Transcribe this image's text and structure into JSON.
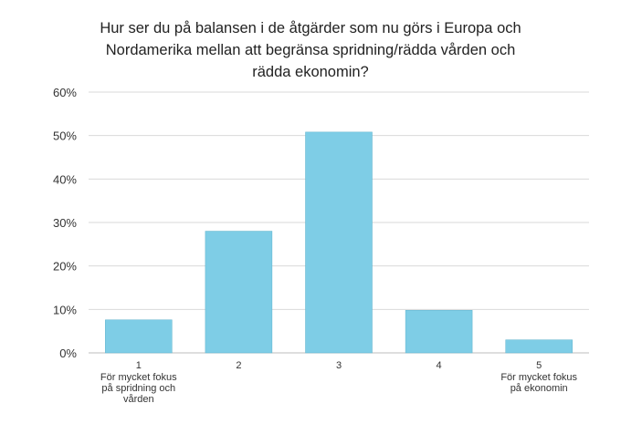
{
  "chart_data": {
    "type": "bar",
    "title_lines": [
      "Hur ser du på balansen i de åtgärder som nu görs i Europa och",
      "Nordamerika mellan att begränsa spridning/rädda vården och",
      "rädda ekonomin?"
    ],
    "categories": [
      "1",
      "2",
      "3",
      "4",
      "5"
    ],
    "category_sublabels": [
      [
        "För mycket fokus",
        "på spridning och",
        "vården"
      ],
      [],
      [],
      [],
      [
        "För mycket fokus",
        "på ekonomin"
      ]
    ],
    "values": [
      7.6,
      28.0,
      50.8,
      9.8,
      3.0
    ],
    "ylim": [
      0,
      60
    ],
    "yticks": [
      0,
      10,
      20,
      30,
      40,
      50,
      60
    ],
    "ytick_labels": [
      "0%",
      "10%",
      "20%",
      "30%",
      "40%",
      "50%",
      "60%"
    ],
    "bar_color": "#7ecde6",
    "grid": true
  }
}
